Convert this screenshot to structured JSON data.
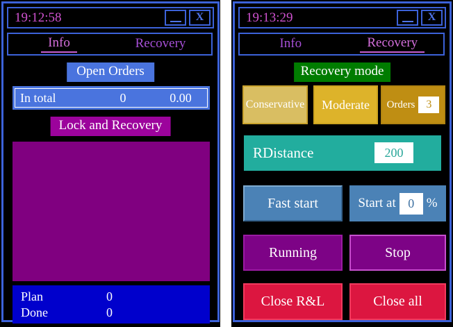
{
  "left_window": {
    "title": "19:12:58",
    "close_glyph": "X",
    "tabs": {
      "info": "Info",
      "recovery": "Recovery"
    },
    "active_tab": "Info",
    "open_orders_button": "Open Orders",
    "in_total": {
      "label": "In total",
      "count": "0",
      "amount": "0.00"
    },
    "lock_recovery_button": "Lock and Recovery",
    "summary": [
      {
        "label": "Plan",
        "value": "0"
      },
      {
        "label": "Done",
        "value": "0"
      }
    ]
  },
  "right_window": {
    "title": "19:13:29",
    "close_glyph": "X",
    "tabs": {
      "info": "Info",
      "recovery": "Recovery"
    },
    "active_tab": "Recovery",
    "recovery_mode_button": "Recovery mode",
    "conservative_button": "Conservative",
    "moderate_button": "Moderate",
    "orders": {
      "label": "Orders",
      "value": "3"
    },
    "rdistance": {
      "label": "RDistance",
      "value": "200"
    },
    "fast_start_button": "Fast start",
    "start_at": {
      "label": "Start at",
      "value": "0",
      "unit": "%"
    },
    "running_button": "Running",
    "stop_button": "Stop",
    "close_rl_button": "Close R&L",
    "close_all_button": "Close all"
  },
  "colors": {
    "window_border": "#3c62d9",
    "title_text": "#cf52cf",
    "tab_active": "#d56fdd",
    "tab_inactive": "#a64fd6",
    "royal_blue": "#4a74de",
    "dark_magenta": "#9c039c",
    "purple_panel": "#800080",
    "plan_blue": "#0000cc",
    "recovery_green": "#007c00",
    "conservative_khaki": "#d9be62",
    "moderate_gold": "#ddb32a",
    "orders_dark_gold": "#bf8e13",
    "rdistance_teal": "#22ad9e",
    "steel_blue": "#4b82b6",
    "running_purple": "#7d0386",
    "close_crimson": "#dc1640"
  }
}
